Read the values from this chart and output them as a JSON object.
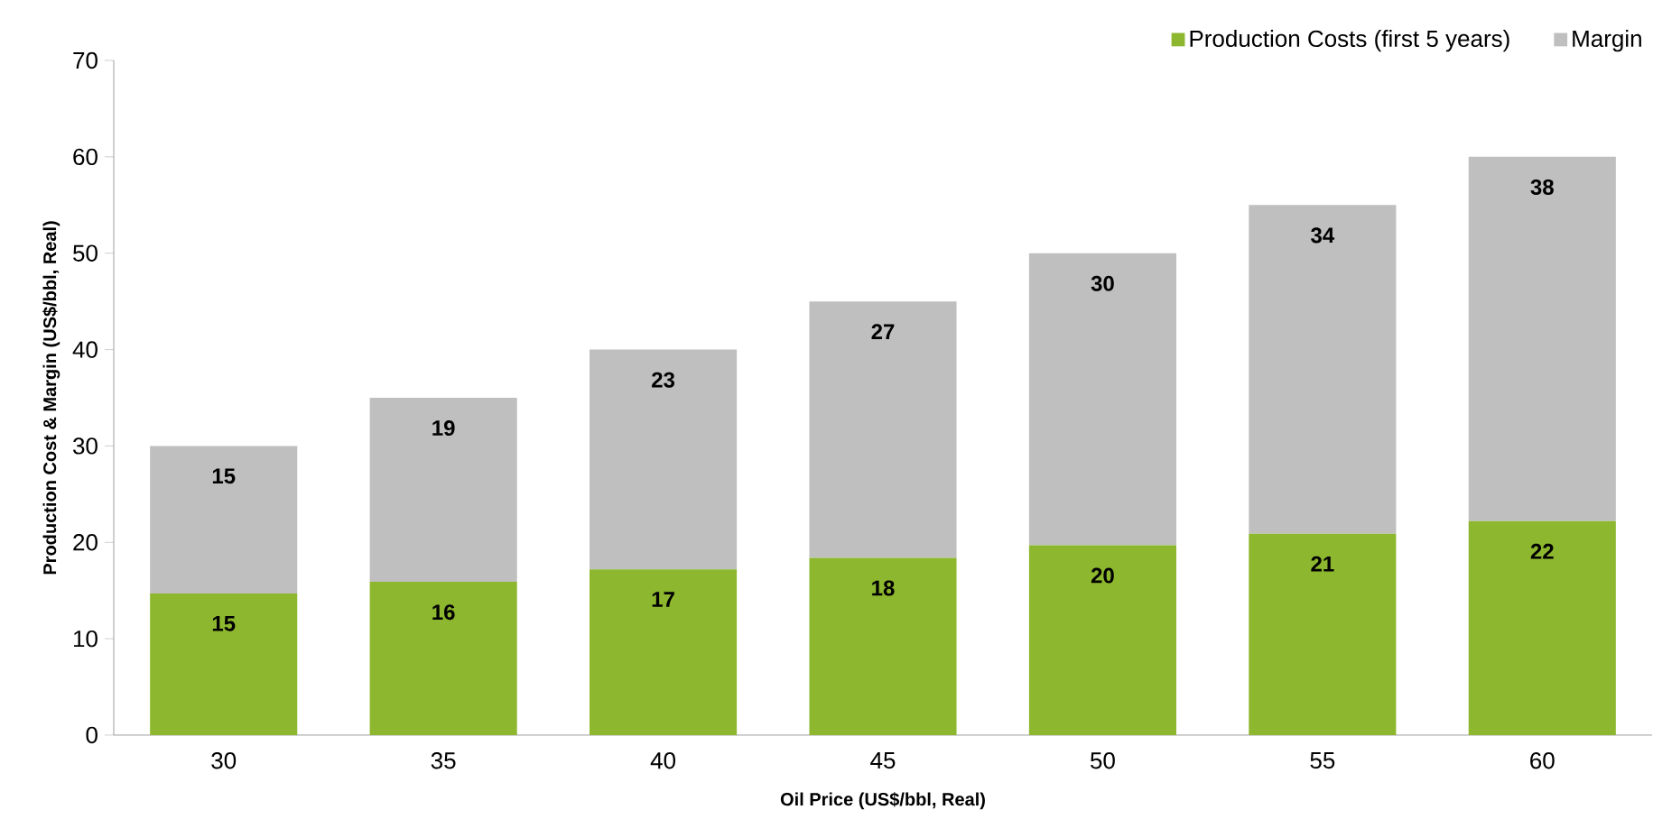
{
  "chart_data": {
    "type": "bar",
    "stacked": true,
    "xlabel": "Oil Price (US$/bbl, Real)",
    "ylabel": "Production Cost & Margin (US$/bbl, Real)",
    "categories": [
      "30",
      "35",
      "40",
      "45",
      "50",
      "55",
      "60"
    ],
    "series": [
      {
        "name": "Production Costs (first 5 years)",
        "color": "#8db72e",
        "values": [
          14.7,
          15.9,
          17.2,
          18.4,
          19.7,
          20.9,
          22.2
        ],
        "value_labels": [
          "15",
          "16",
          "17",
          "18",
          "20",
          "21",
          "22"
        ]
      },
      {
        "name": "Margin",
        "color": "#bfbfbf",
        "values": [
          15.3,
          19.1,
          22.8,
          26.6,
          30.3,
          34.1,
          37.8
        ],
        "value_labels": [
          "15",
          "19",
          "23",
          "27",
          "30",
          "34",
          "38"
        ]
      }
    ],
    "ylim": [
      0,
      70
    ],
    "yticks": [
      0,
      10,
      20,
      30,
      40,
      50,
      60,
      70
    ],
    "legend": "top right",
    "grid": false
  }
}
